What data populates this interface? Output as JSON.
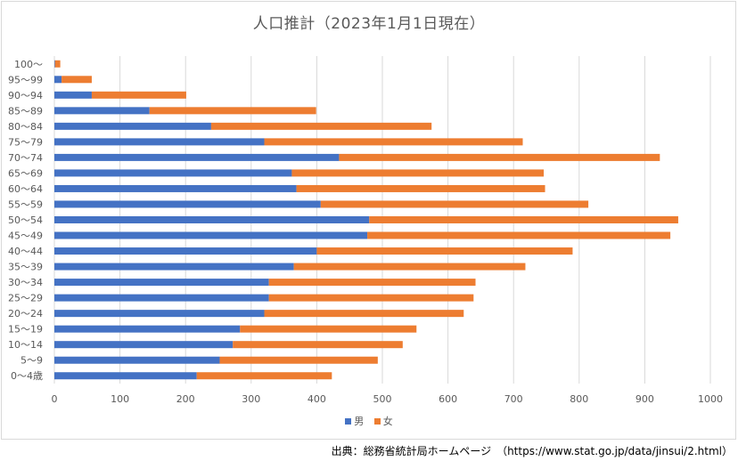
{
  "chart_data": {
    "type": "bar",
    "orientation": "horizontal",
    "stacked": true,
    "title": "人口推計（2023年1月1日現在）",
    "categories": [
      "0〜4歳",
      "5〜9",
      "10〜14",
      "15〜19",
      "20〜24",
      "25〜29",
      "30〜34",
      "35〜39",
      "40〜44",
      "45〜49",
      "50〜54",
      "55〜59",
      "60〜64",
      "65〜69",
      "70〜74",
      "75〜79",
      "80〜84",
      "85〜89",
      "90〜94",
      "95〜99",
      "100〜"
    ],
    "series": [
      {
        "name": "男",
        "color": "#4472c4",
        "values": [
          217,
          252,
          272,
          283,
          320,
          327,
          327,
          365,
          400,
          477,
          480,
          406,
          369,
          362,
          434,
          320,
          239,
          145,
          57,
          11,
          1
        ]
      },
      {
        "name": "女",
        "color": "#ed7d31",
        "values": [
          206,
          241,
          259,
          269,
          304,
          312,
          315,
          353,
          390,
          462,
          471,
          408,
          379,
          384,
          489,
          394,
          336,
          254,
          144,
          46,
          8
        ]
      }
    ],
    "xlim": [
      0,
      1000
    ],
    "xticks": [
      0,
      100,
      200,
      300,
      400,
      500,
      600,
      700,
      800,
      900,
      1000
    ],
    "grid": true,
    "legend_position": "bottom"
  },
  "source_note": "出典：総務省統計局ホームページ　（https://www.stat.go.jp/data/jinsui/2.html）"
}
